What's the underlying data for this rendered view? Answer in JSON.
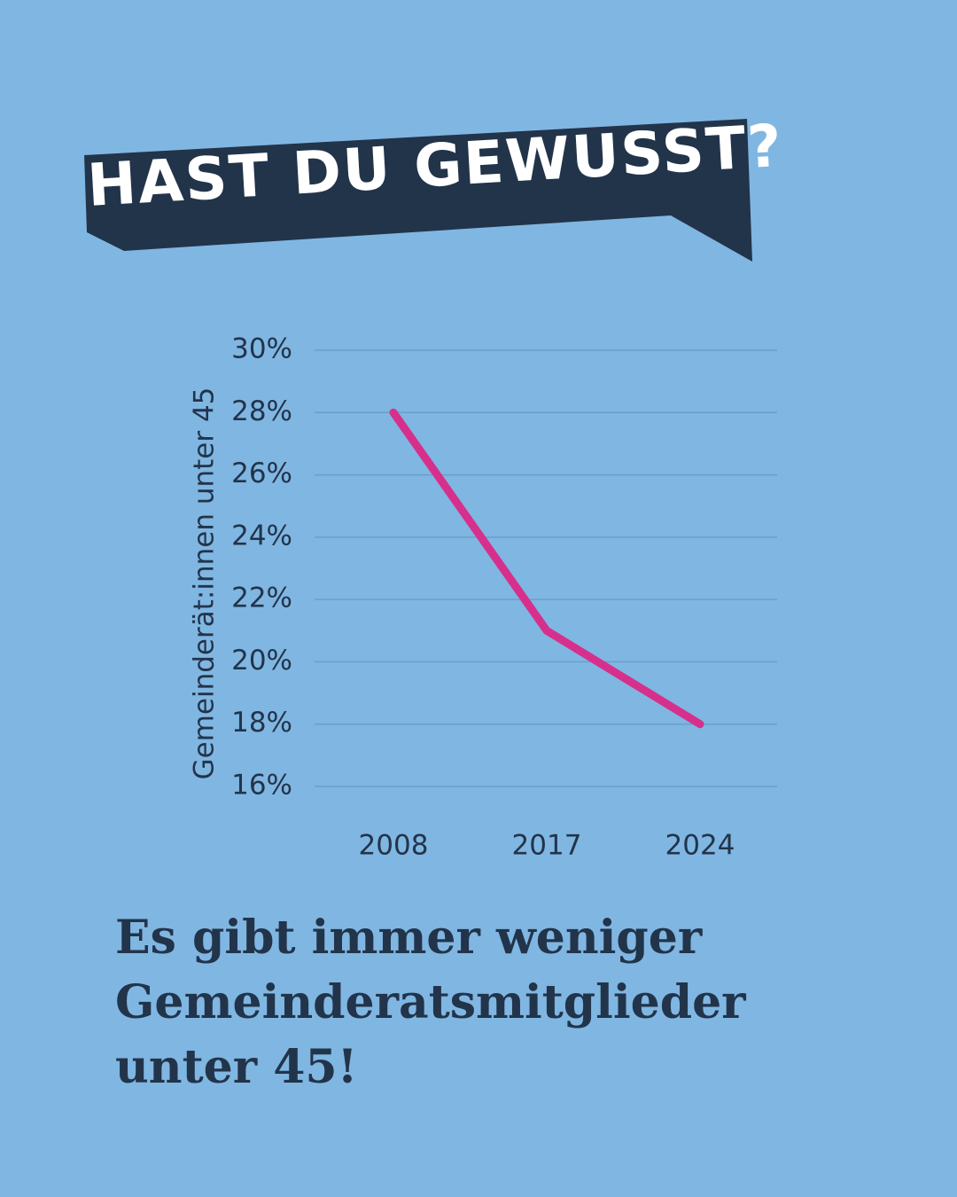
{
  "title": "HAST DU GEWUSST?",
  "chart_data": {
    "type": "line",
    "y_label": "Gemeinderät:innen unter 45",
    "categories": [
      "2008",
      "2017",
      "2024"
    ],
    "values": [
      28,
      21,
      18
    ],
    "color": "#d6308c",
    "ylim": [
      16,
      30
    ],
    "yticks": [
      {
        "value": 16,
        "label": "16%"
      },
      {
        "value": 18,
        "label": "18%"
      },
      {
        "value": 20,
        "label": "20%"
      },
      {
        "value": 22,
        "label": "22%"
      },
      {
        "value": 24,
        "label": "24%"
      },
      {
        "value": 26,
        "label": "26%"
      },
      {
        "value": 28,
        "label": "28%"
      },
      {
        "value": 30,
        "label": "30%"
      }
    ],
    "grid": true
  },
  "caption_lines": [
    "Es gibt immer weniger",
    "Gemeinderatsmitglieder",
    "unter 45!"
  ]
}
